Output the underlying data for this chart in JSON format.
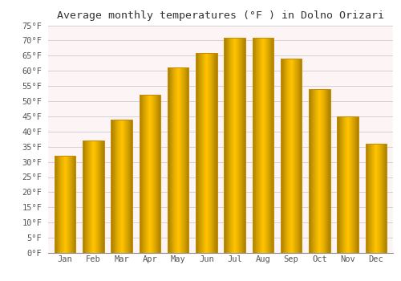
{
  "title": "Average monthly temperatures (°F ) in Dolno Orizari",
  "months": [
    "Jan",
    "Feb",
    "Mar",
    "Apr",
    "May",
    "Jun",
    "Jul",
    "Aug",
    "Sep",
    "Oct",
    "Nov",
    "Dec"
  ],
  "values": [
    32,
    37,
    44,
    52,
    61,
    66,
    71,
    71,
    64,
    54,
    45,
    36
  ],
  "bar_color_center": "#FFB732",
  "bar_color_edge": "#F5A800",
  "bar_outline_color": "#CC8800",
  "background_color": "#ffffff",
  "plot_bg_color": "#fdf5f5",
  "grid_color": "#cccccc",
  "ylim": [
    0,
    75
  ],
  "yticks": [
    0,
    5,
    10,
    15,
    20,
    25,
    30,
    35,
    40,
    45,
    50,
    55,
    60,
    65,
    70,
    75
  ],
  "title_fontsize": 9.5,
  "tick_fontsize": 7.5,
  "font_family": "monospace",
  "bar_width": 0.75
}
